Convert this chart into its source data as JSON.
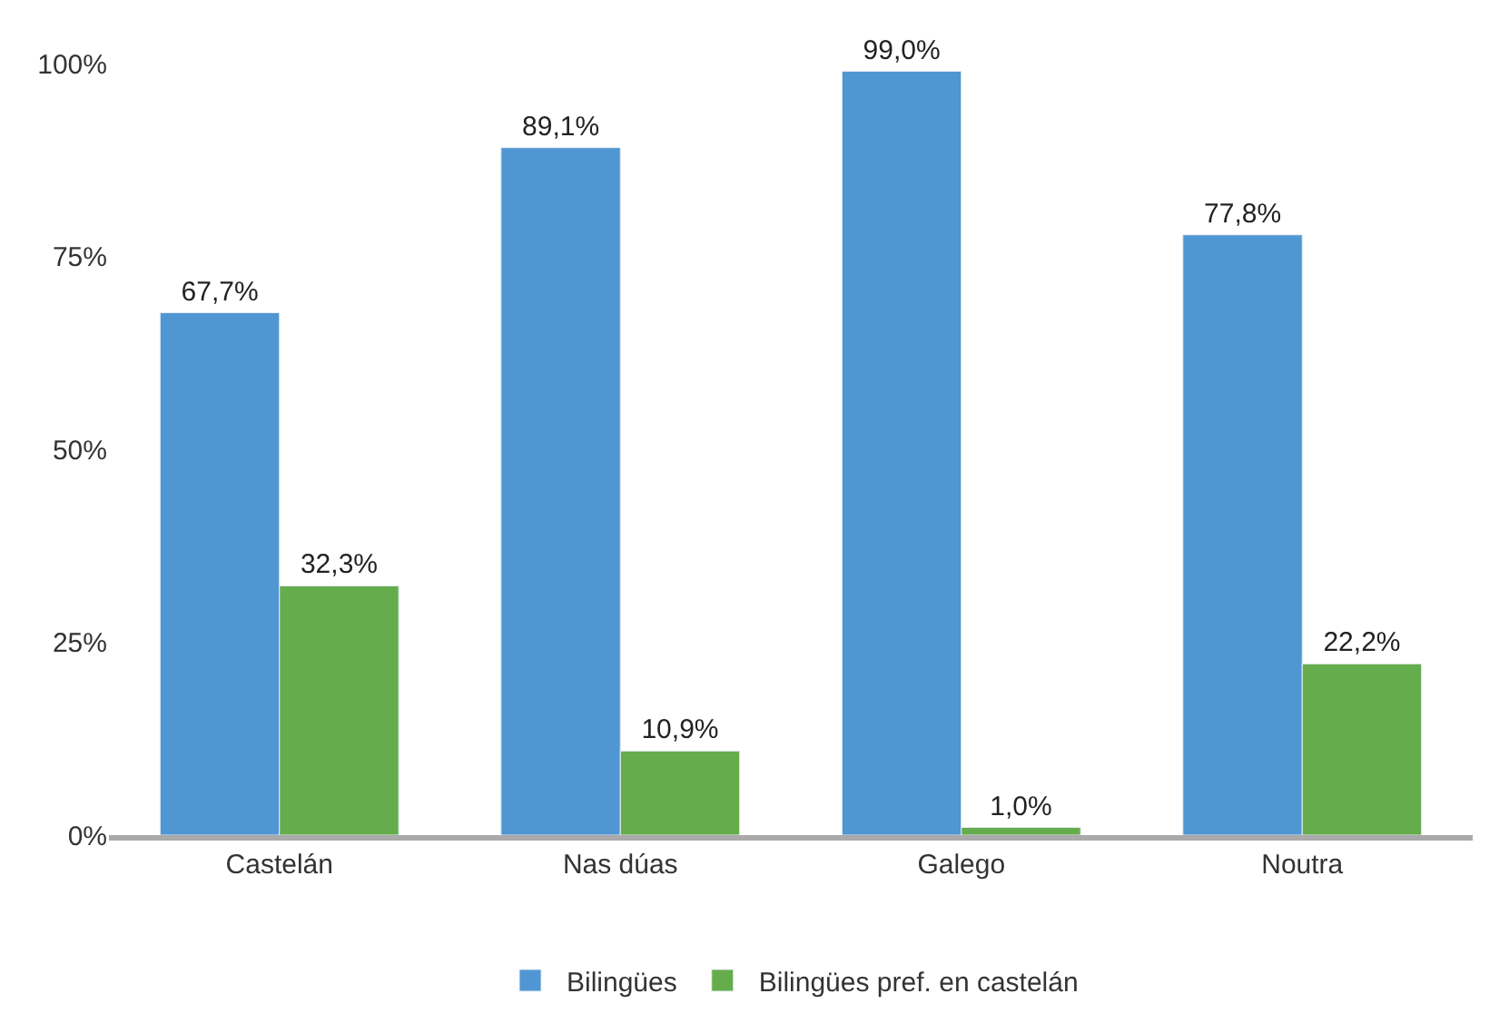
{
  "chart_data": {
    "type": "bar",
    "categories": [
      "Castelán",
      "Nas dúas",
      "Galego",
      "Noutra"
    ],
    "series": [
      {
        "name": "Bilingües",
        "color": "#4f96d3",
        "values": [
          67.7,
          89.1,
          99.0,
          77.8
        ],
        "value_labels": [
          "67,7%",
          "89,1%",
          "99,0%",
          "77,8%"
        ]
      },
      {
        "name": "Bilingües pref. en castelán",
        "color": "#65ad4c",
        "values": [
          32.3,
          10.9,
          1.0,
          22.2
        ],
        "value_labels": [
          "32,3%",
          "10,9%",
          "1,0%",
          "22,2%"
        ]
      }
    ],
    "ylim": [
      0,
      100
    ],
    "yticks": [
      {
        "value": 0,
        "label": "0%"
      },
      {
        "value": 25,
        "label": "25%"
      },
      {
        "value": 50,
        "label": "50%"
      },
      {
        "value": 75,
        "label": "75%"
      },
      {
        "value": 100,
        "label": "100%"
      }
    ],
    "legend": "bottom"
  }
}
